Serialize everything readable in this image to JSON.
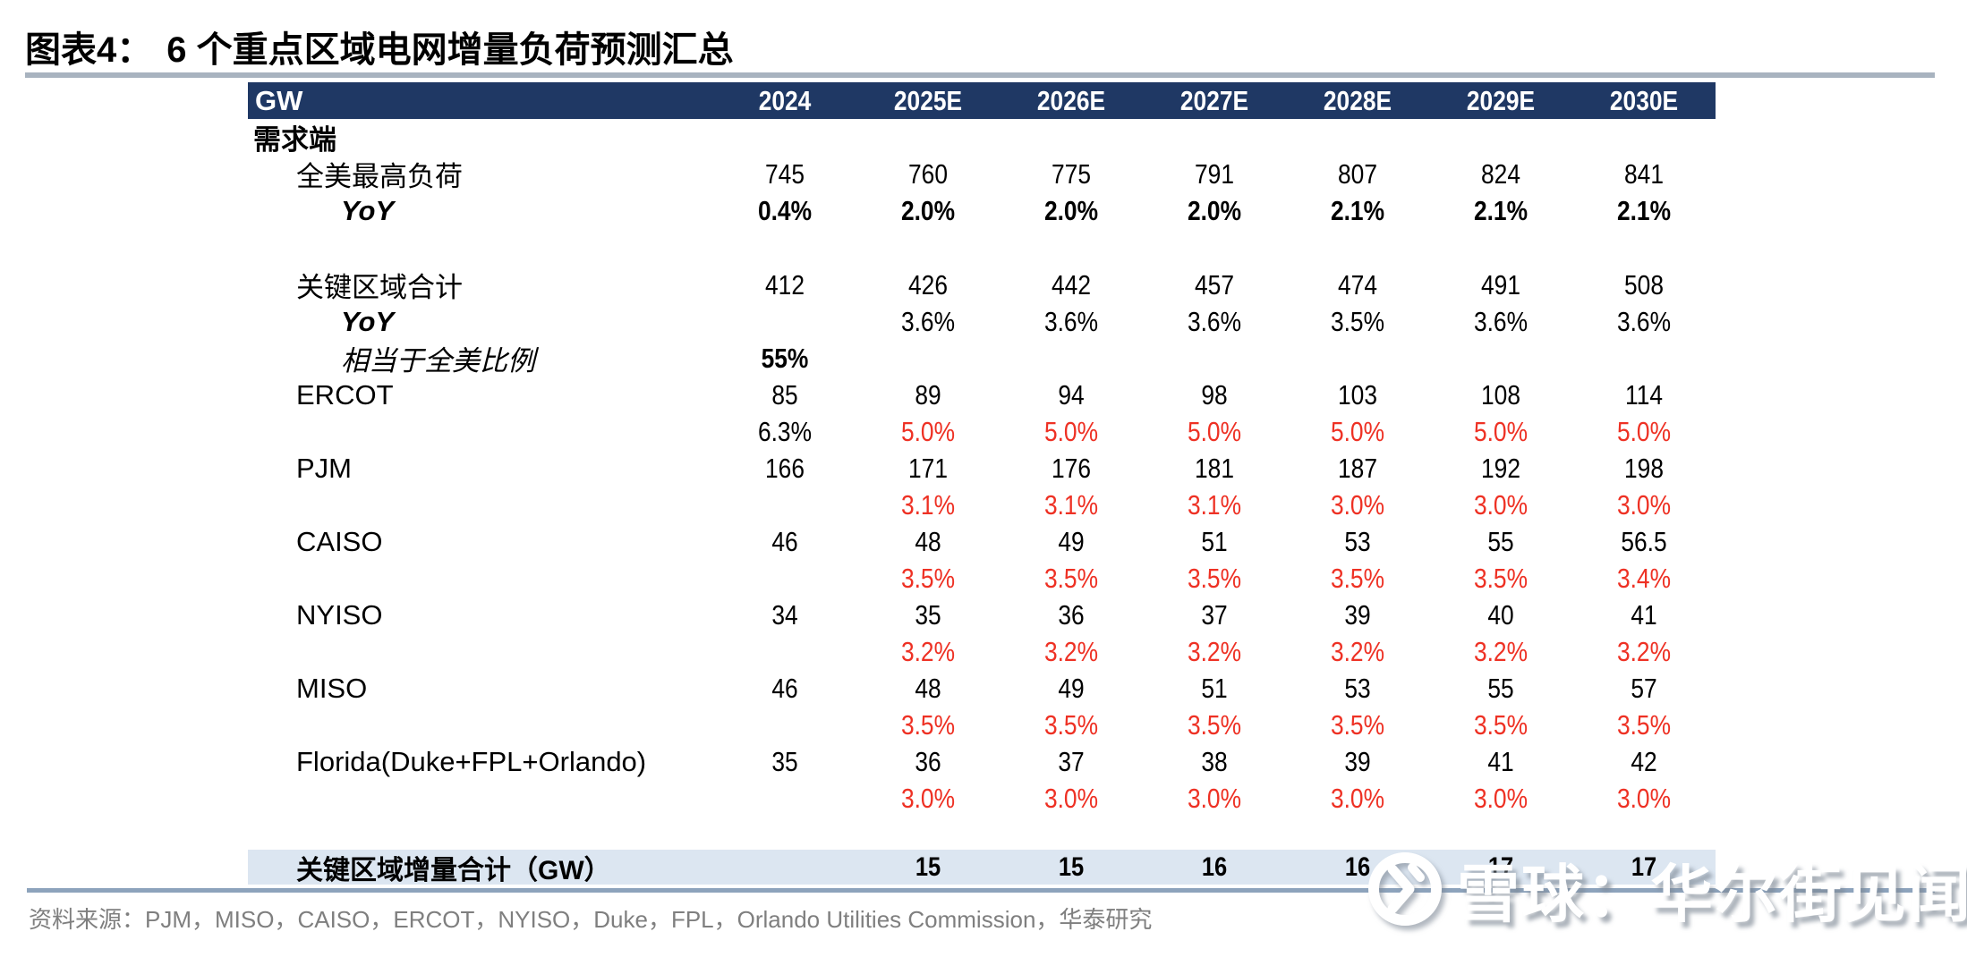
{
  "figure": {
    "label": "图表4：",
    "title": "6 个重点区域电网增量负荷预测汇总"
  },
  "table": {
    "unit_header": "GW",
    "year_headers": [
      "2024",
      "2025E",
      "2026E",
      "2027E",
      "2028E",
      "2029E",
      "2030E"
    ],
    "rows": [
      {
        "label": "需求端",
        "indent": 0,
        "label_style": "bold",
        "values": [
          "",
          "",
          "",
          "",
          "",
          "",
          ""
        ]
      },
      {
        "label": "全美最高负荷",
        "indent": 1,
        "label_style": "normal",
        "values": [
          "745",
          "760",
          "775",
          "791",
          "807",
          "824",
          "841"
        ]
      },
      {
        "label": "YoY",
        "indent": 2,
        "label_style": "bold-italic",
        "values": [
          "0.4%",
          "2.0%",
          "2.0%",
          "2.0%",
          "2.1%",
          "2.1%",
          "2.1%"
        ],
        "value_styles": [
          "bold",
          "bold",
          "bold",
          "bold",
          "bold",
          "bold",
          "bold"
        ]
      },
      {
        "label": "关键区域合计",
        "indent": 1,
        "label_style": "normal",
        "gap_before": true,
        "values": [
          "412",
          "426",
          "442",
          "457",
          "474",
          "491",
          "508"
        ]
      },
      {
        "label": "YoY",
        "indent": 2,
        "label_style": "bold-italic",
        "values": [
          "",
          "3.6%",
          "3.6%",
          "3.6%",
          "3.5%",
          "3.6%",
          "3.6%"
        ]
      },
      {
        "label": "相当于全美比例",
        "indent": 2,
        "label_style": "italic",
        "values": [
          "55%",
          "",
          "",
          "",
          "",
          "",
          ""
        ],
        "value_styles": [
          "bold",
          "",
          "",
          "",
          "",
          "",
          ""
        ]
      },
      {
        "label": "ERCOT",
        "indent": 1,
        "label_style": "normal",
        "values": [
          "85",
          "89",
          "94",
          "98",
          "103",
          "108",
          "114"
        ]
      },
      {
        "label": "",
        "indent": 1,
        "label_style": "normal",
        "values": [
          "6.3%",
          "5.0%",
          "5.0%",
          "5.0%",
          "5.0%",
          "5.0%",
          "5.0%"
        ],
        "value_styles": [
          "",
          "red",
          "red",
          "red",
          "red",
          "red",
          "red"
        ]
      },
      {
        "label": "PJM",
        "indent": 1,
        "label_style": "normal",
        "values": [
          "166",
          "171",
          "176",
          "181",
          "187",
          "192",
          "198"
        ]
      },
      {
        "label": "",
        "indent": 1,
        "label_style": "normal",
        "values": [
          "",
          "3.1%",
          "3.1%",
          "3.1%",
          "3.0%",
          "3.0%",
          "3.0%"
        ],
        "value_styles": [
          "",
          "red",
          "red",
          "red",
          "red",
          "red",
          "red"
        ]
      },
      {
        "label": "CAISO",
        "indent": 1,
        "label_style": "normal",
        "values": [
          "46",
          "48",
          "49",
          "51",
          "53",
          "55",
          "56.5"
        ]
      },
      {
        "label": "",
        "indent": 1,
        "label_style": "normal",
        "values": [
          "",
          "3.5%",
          "3.5%",
          "3.5%",
          "3.5%",
          "3.5%",
          "3.4%"
        ],
        "value_styles": [
          "",
          "red",
          "red",
          "red",
          "red",
          "red",
          "red"
        ]
      },
      {
        "label": "NYISO",
        "indent": 1,
        "label_style": "normal",
        "values": [
          "34",
          "35",
          "36",
          "37",
          "39",
          "40",
          "41"
        ]
      },
      {
        "label": "",
        "indent": 1,
        "label_style": "normal",
        "values": [
          "",
          "3.2%",
          "3.2%",
          "3.2%",
          "3.2%",
          "3.2%",
          "3.2%"
        ],
        "value_styles": [
          "",
          "red",
          "red",
          "red",
          "red",
          "red",
          "red"
        ]
      },
      {
        "label": "MISO",
        "indent": 1,
        "label_style": "normal",
        "values": [
          "46",
          "48",
          "49",
          "51",
          "53",
          "55",
          "57"
        ]
      },
      {
        "label": "",
        "indent": 1,
        "label_style": "normal",
        "values": [
          "",
          "3.5%",
          "3.5%",
          "3.5%",
          "3.5%",
          "3.5%",
          "3.5%"
        ],
        "value_styles": [
          "",
          "red",
          "red",
          "red",
          "red",
          "red",
          "red"
        ]
      },
      {
        "label": "Florida(Duke+FPL+Orlando)",
        "indent": 1,
        "label_style": "normal",
        "values": [
          "35",
          "36",
          "37",
          "38",
          "39",
          "41",
          "42"
        ]
      },
      {
        "label": "",
        "indent": 1,
        "label_style": "normal",
        "values": [
          "",
          "3.0%",
          "3.0%",
          "3.0%",
          "3.0%",
          "3.0%",
          "3.0%"
        ],
        "value_styles": [
          "",
          "red",
          "red",
          "red",
          "red",
          "red",
          "red"
        ]
      }
    ],
    "summary": {
      "label": "关键区域增量合计（GW）",
      "values": [
        "",
        "15",
        "15",
        "16",
        "16",
        "17",
        "17"
      ]
    }
  },
  "source": "资料来源：PJM，MISO，CAISO，ERCOT，NYISO，Duke，FPL，Orlando Utilities Commission，华泰研究",
  "watermark": {
    "logo": "xueqiu-snowball-icon",
    "text": "雪球：华尔街见闻"
  },
  "colors": {
    "header_bg": "#1f3864",
    "header_text": "#ffffff",
    "summary_bg": "#dce6f1",
    "negative_red": "#ee3124",
    "title_divider": "#a8b3bf",
    "bottom_divider": "#8da3bc",
    "source_gray": "#7f7f7f"
  },
  "chart_data": {
    "type": "table",
    "title": "6 个重点区域电网增量负荷预测汇总 (GW)",
    "x": [
      "2024",
      "2025E",
      "2026E",
      "2027E",
      "2028E",
      "2029E",
      "2030E"
    ],
    "series": [
      {
        "name": "全美最高负荷",
        "values": [
          745,
          760,
          775,
          791,
          807,
          824,
          841
        ]
      },
      {
        "name": "全美最高负荷 YoY",
        "values": [
          "0.4%",
          "2.0%",
          "2.0%",
          "2.0%",
          "2.1%",
          "2.1%",
          "2.1%"
        ]
      },
      {
        "name": "关键区域合计",
        "values": [
          412,
          426,
          442,
          457,
          474,
          491,
          508
        ]
      },
      {
        "name": "关键区域合计 YoY",
        "values": [
          null,
          "3.6%",
          "3.6%",
          "3.6%",
          "3.5%",
          "3.6%",
          "3.6%"
        ]
      },
      {
        "name": "相当于全美比例",
        "values": [
          "55%",
          null,
          null,
          null,
          null,
          null,
          null
        ]
      },
      {
        "name": "ERCOT",
        "values": [
          85,
          89,
          94,
          98,
          103,
          108,
          114
        ]
      },
      {
        "name": "ERCOT YoY",
        "values": [
          "6.3%",
          "5.0%",
          "5.0%",
          "5.0%",
          "5.0%",
          "5.0%",
          "5.0%"
        ]
      },
      {
        "name": "PJM",
        "values": [
          166,
          171,
          176,
          181,
          187,
          192,
          198
        ]
      },
      {
        "name": "PJM YoY",
        "values": [
          null,
          "3.1%",
          "3.1%",
          "3.1%",
          "3.0%",
          "3.0%",
          "3.0%"
        ]
      },
      {
        "name": "CAISO",
        "values": [
          46,
          48,
          49,
          51,
          53,
          55,
          56.5
        ]
      },
      {
        "name": "CAISO YoY",
        "values": [
          null,
          "3.5%",
          "3.5%",
          "3.5%",
          "3.5%",
          "3.5%",
          "3.4%"
        ]
      },
      {
        "name": "NYISO",
        "values": [
          34,
          35,
          36,
          37,
          39,
          40,
          41
        ]
      },
      {
        "name": "NYISO YoY",
        "values": [
          null,
          "3.2%",
          "3.2%",
          "3.2%",
          "3.2%",
          "3.2%",
          "3.2%"
        ]
      },
      {
        "name": "MISO",
        "values": [
          46,
          48,
          49,
          51,
          53,
          55,
          57
        ]
      },
      {
        "name": "MISO YoY",
        "values": [
          null,
          "3.5%",
          "3.5%",
          "3.5%",
          "3.5%",
          "3.5%",
          "3.5%"
        ]
      },
      {
        "name": "Florida(Duke+FPL+Orlando)",
        "values": [
          35,
          36,
          37,
          38,
          39,
          41,
          42
        ]
      },
      {
        "name": "Florida YoY",
        "values": [
          null,
          "3.0%",
          "3.0%",
          "3.0%",
          "3.0%",
          "3.0%",
          "3.0%"
        ]
      },
      {
        "name": "关键区域增量合计（GW）",
        "values": [
          null,
          15,
          15,
          16,
          16,
          17,
          17
        ]
      }
    ]
  }
}
